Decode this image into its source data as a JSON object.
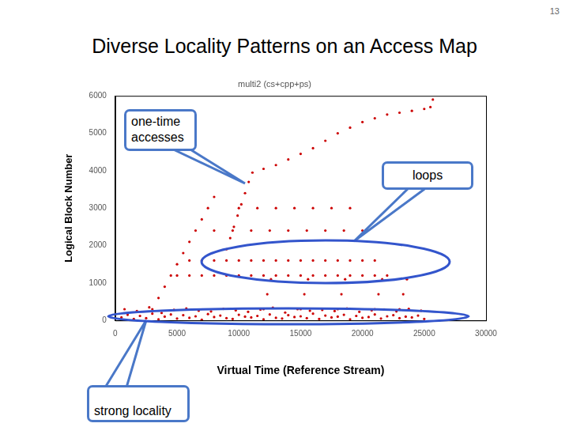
{
  "page": {
    "number": "13",
    "title": "Diverse Locality Patterns on an Access Map"
  },
  "chart_data": {
    "type": "scatter",
    "title": "multi2 (cs+cpp+ps)",
    "x_label": "Virtual Time (Reference Stream)",
    "y_label": "Logical Block Number",
    "annotations": [
      "one-time accesses",
      "loops",
      "strong locality"
    ],
    "color": "#cc0000",
    "marker": "circle",
    "grid": false,
    "xlim": [
      0,
      30000
    ],
    "ylim": [
      0,
      6000
    ],
    "xticks": [
      0,
      5000,
      10000,
      15000,
      20000,
      25000,
      30000
    ],
    "yticks": [
      0,
      1000,
      2000,
      3000,
      4000,
      5000,
      6000
    ],
    "x": [
      500,
      1000,
      1500,
      2000,
      2500,
      3000,
      3500,
      4000,
      4500,
      5000,
      5500,
      6000,
      6500,
      7000,
      7500,
      8000,
      8500,
      9000,
      9500,
      10000,
      10500,
      11000,
      11500,
      12000,
      12500,
      13000,
      13500,
      14000,
      14500,
      15000,
      15500,
      16000,
      16500,
      17000,
      17500,
      18000,
      18500,
      19000,
      19500,
      20000,
      20500,
      21000,
      21500,
      22000,
      22500,
      23000,
      23500,
      24000,
      24500,
      25000,
      750,
      1750,
      2750,
      3750,
      4750,
      5750,
      6750,
      7750,
      8750,
      9750,
      10750,
      11750,
      12750,
      13750,
      14750,
      15750,
      16750,
      17750,
      18750,
      19750,
      20750,
      21750,
      22750,
      23750,
      24750,
      9000,
      9300,
      9600,
      9900,
      10200,
      10500,
      10800,
      11100,
      12000,
      13000,
      14000,
      15000,
      16000,
      17000,
      18000,
      19000,
      20000,
      21000,
      22000,
      23000,
      24000,
      25000,
      3000,
      3500,
      4000,
      4500,
      5000,
      5500,
      6000,
      6500,
      7000,
      7500,
      8000,
      12000,
      12300,
      12600,
      15000,
      15300,
      15600,
      18000,
      18300,
      18600,
      21000,
      21300,
      21600,
      23000,
      23300,
      23600,
      5000,
      6000,
      7000,
      8000,
      9000,
      10000,
      11000,
      12000,
      13000,
      14000,
      15000,
      16000,
      17000,
      18000,
      19000,
      20000,
      21000,
      22000,
      6000,
      7000,
      8000,
      9000,
      10000,
      11000,
      12000,
      13000,
      14000,
      15000,
      16000,
      17000,
      18000,
      19000,
      20000,
      21000,
      8000,
      9500,
      11000,
      12500,
      14000,
      15500,
      17000,
      18500,
      20000,
      10000,
      11500,
      13000,
      14500,
      16000,
      17500,
      19000,
      25500,
      25700
    ],
    "values": [
      80,
      150,
      40,
      120,
      60,
      180,
      30,
      100,
      160,
      50,
      140,
      70,
      110,
      20,
      170,
      90,
      130,
      60,
      40,
      150,
      100,
      80,
      120,
      30,
      160,
      70,
      50,
      140,
      90,
      110,
      60,
      180,
      40,
      130,
      80,
      100,
      150,
      30,
      120,
      70,
      90,
      160,
      50,
      110,
      140,
      60,
      100,
      80,
      130,
      40,
      300,
      250,
      350,
      200,
      280,
      320,
      260,
      240,
      310,
      270,
      230,
      290,
      340,
      210,
      300,
      260,
      280,
      250,
      320,
      230,
      270,
      290,
      240,
      310,
      260,
      1900,
      2200,
      2500,
      2800,
      3100,
      3400,
      3700,
      3950,
      4050,
      4150,
      4300,
      4450,
      4600,
      4800,
      5000,
      5150,
      5300,
      5400,
      5500,
      5550,
      5600,
      5650,
      300,
      600,
      900,
      1200,
      1500,
      1800,
      2100,
      2400,
      2700,
      3000,
      3300,
      300,
      700,
      1100,
      300,
      700,
      1100,
      300,
      700,
      1100,
      300,
      700,
      1100,
      300,
      700,
      1100,
      1200,
      1200,
      1200,
      1200,
      1200,
      1200,
      1200,
      1200,
      1200,
      1200,
      1200,
      1200,
      1200,
      1200,
      1200,
      1200,
      1200,
      1200,
      1600,
      1600,
      1600,
      1600,
      1600,
      1600,
      1600,
      1600,
      1600,
      1600,
      1600,
      1600,
      1600,
      1600,
      1600,
      1600,
      2400,
      2400,
      2400,
      2400,
      2400,
      2400,
      2400,
      2400,
      2400,
      3000,
      3000,
      3000,
      3000,
      3000,
      3000,
      3000,
      5700,
      5900
    ]
  }
}
